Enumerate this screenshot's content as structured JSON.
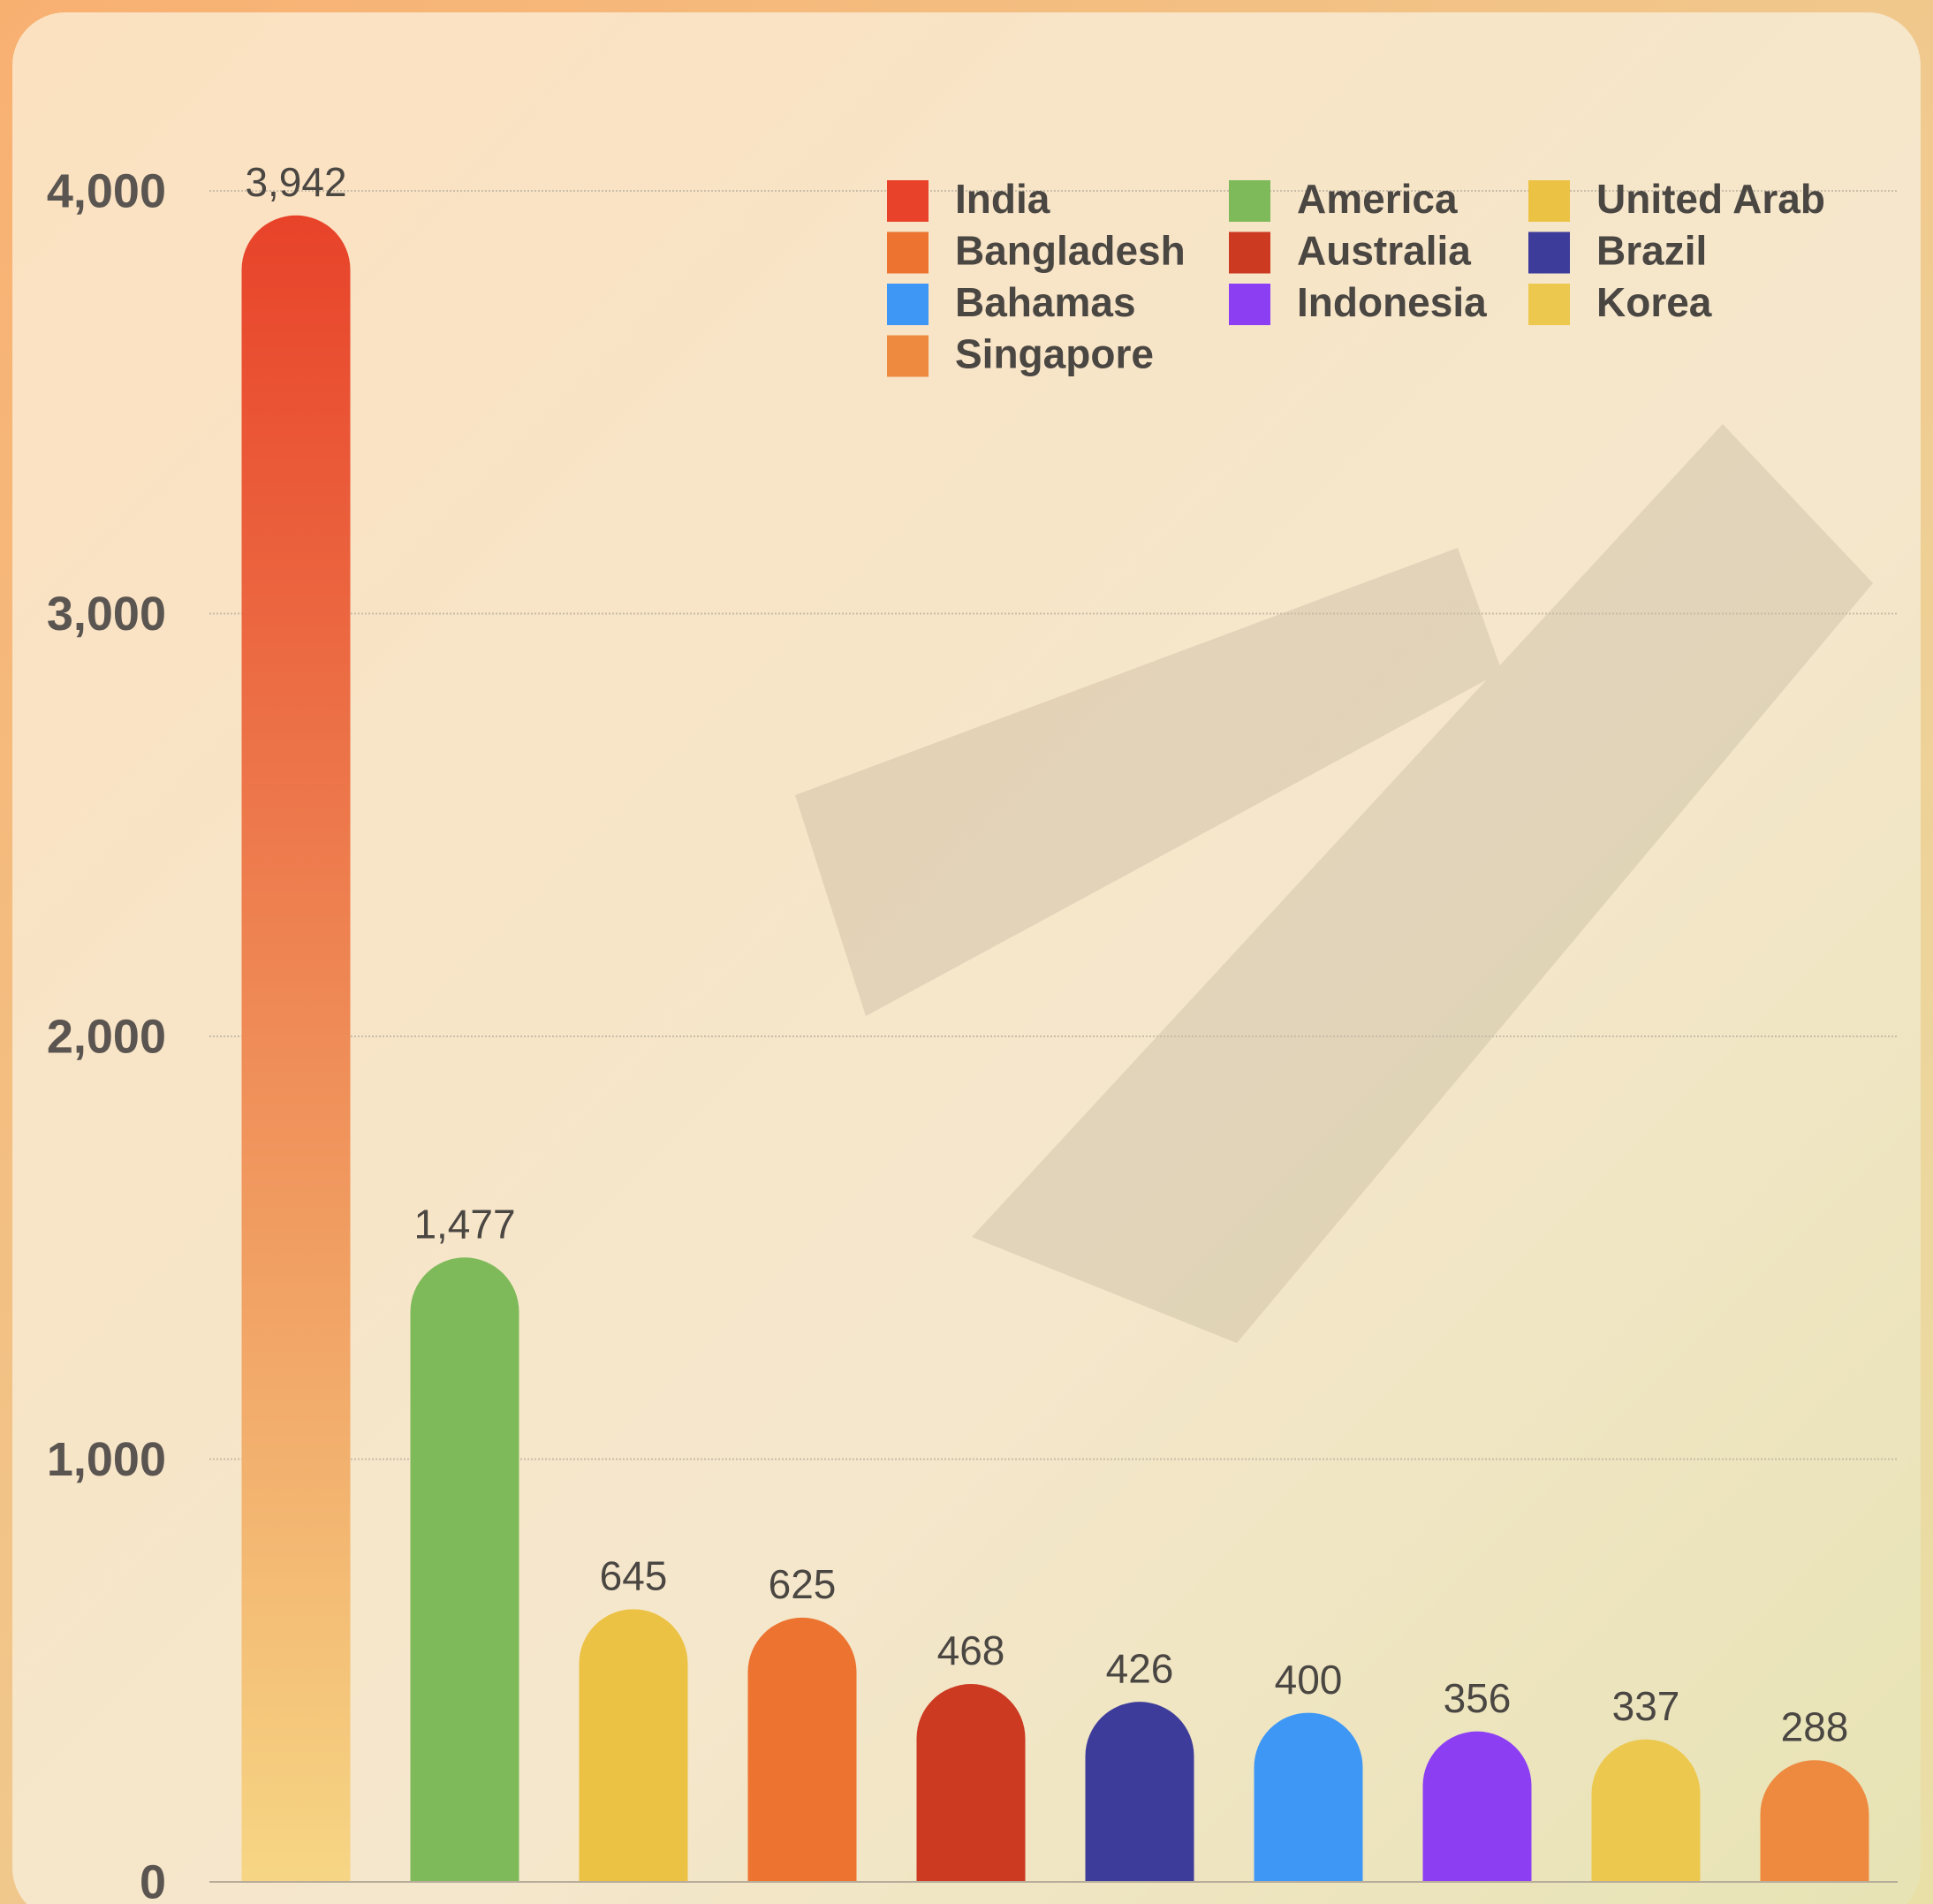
{
  "chart_data": {
    "type": "bar",
    "ylim": [
      0,
      4000
    ],
    "yticks": [
      0,
      {
        "value": 1000,
        "label": "1,000"
      },
      {
        "value": 2000,
        "label": "2,000"
      },
      {
        "value": 3000,
        "label": "3,000"
      },
      {
        "value": 4000,
        "label": "4,000"
      }
    ],
    "grid": true,
    "legend": "top-right",
    "series": [
      {
        "name": "India",
        "color": "#e8432a",
        "values": [
          3942
        ],
        "value_labels": [
          "3,942"
        ]
      },
      {
        "name": "America",
        "color": "#7fba5a",
        "values": [
          1477
        ],
        "value_labels": [
          "1,477"
        ]
      },
      {
        "name": "United Arab",
        "color": "#ecc245",
        "values": [
          645
        ]
      },
      {
        "name": "Bangladesh",
        "color": "#ec7430",
        "values": [
          625
        ]
      },
      {
        "name": "Australia",
        "color": "#cc3a22",
        "values": [
          468
        ]
      },
      {
        "name": "Brazil",
        "color": "#3e3c9a",
        "values": [
          426
        ]
      },
      {
        "name": "Bahamas",
        "color": "#3f97f5",
        "values": [
          400
        ]
      },
      {
        "name": "Indonesia",
        "color": "#8c3ff2",
        "values": [
          356
        ]
      },
      {
        "name": "Korea",
        "color": "#ecc84e",
        "values": [
          337
        ]
      },
      {
        "name": "Singapore",
        "color": "#ee8a40",
        "values": [
          288
        ]
      }
    ]
  }
}
